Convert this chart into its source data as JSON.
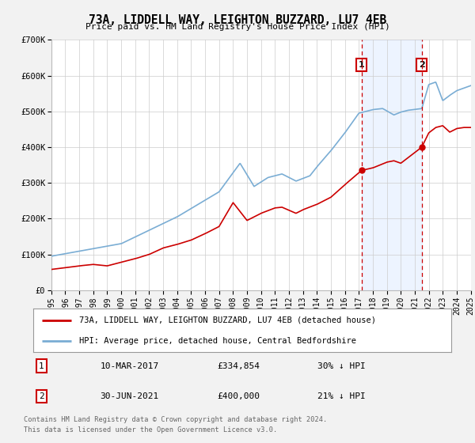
{
  "title": "73A, LIDDELL WAY, LEIGHTON BUZZARD, LU7 4EB",
  "subtitle": "Price paid vs. HM Land Registry's House Price Index (HPI)",
  "background_color": "#f2f2f2",
  "plot_bg_color": "#ffffff",
  "legend_label_red": "73A, LIDDELL WAY, LEIGHTON BUZZARD, LU7 4EB (detached house)",
  "legend_label_blue": "HPI: Average price, detached house, Central Bedfordshire",
  "footnote1": "Contains HM Land Registry data © Crown copyright and database right 2024.",
  "footnote2": "This data is licensed under the Open Government Licence v3.0.",
  "transaction1_label": "1",
  "transaction1_date": "10-MAR-2017",
  "transaction1_price": "£334,854",
  "transaction1_hpi": "30% ↓ HPI",
  "transaction2_label": "2",
  "transaction2_date": "30-JUN-2021",
  "transaction2_price": "£400,000",
  "transaction2_hpi": "21% ↓ HPI",
  "xlim": [
    1995,
    2025
  ],
  "ylim": [
    0,
    700000
  ],
  "yticks": [
    0,
    100000,
    200000,
    300000,
    400000,
    500000,
    600000,
    700000
  ],
  "ytick_labels": [
    "£0",
    "£100K",
    "£200K",
    "£300K",
    "£400K",
    "£500K",
    "£600K",
    "£700K"
  ],
  "red_color": "#cc0000",
  "blue_color": "#7aadd4",
  "vline1_x": 2017.19,
  "vline2_x": 2021.5,
  "marker1_x": 2017.19,
  "marker1_y": 334854,
  "marker2_x": 2021.5,
  "marker2_y": 400000,
  "shade_color": "#cce0ff",
  "shade_alpha": 0.35
}
